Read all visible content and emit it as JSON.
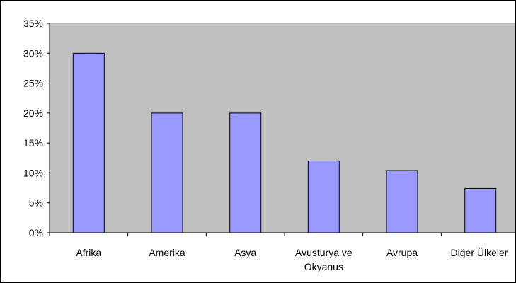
{
  "chart_data": {
    "type": "bar",
    "categories": [
      "Afrika",
      "Amerika",
      "Asya",
      "Avusturya ve Okyanus",
      "Avrupa",
      "Diğer Ülkeler"
    ],
    "category_label_lines": [
      [
        "Afrika"
      ],
      [
        "Amerika"
      ],
      [
        "Asya"
      ],
      [
        "Avusturya ve",
        "Okyanus"
      ],
      [
        "Avrupa"
      ],
      [
        "Diğer Ülkeler"
      ]
    ],
    "values": [
      30,
      20,
      20,
      12,
      10.4,
      7.4
    ],
    "y_unit": "%",
    "y_ticks": [
      "0%",
      "5%",
      "10%",
      "15%",
      "20%",
      "25%",
      "30%",
      "35%"
    ],
    "ylim": [
      0,
      35
    ],
    "title": "",
    "xlabel": "",
    "ylabel": "",
    "grid": false,
    "legend": "none",
    "colors": {
      "bar_fill": "#9999ff",
      "bar_stroke": "#000000",
      "plot_background": "#c0c0c0",
      "axis": "#000000",
      "chart_background": "#ffffff"
    }
  }
}
